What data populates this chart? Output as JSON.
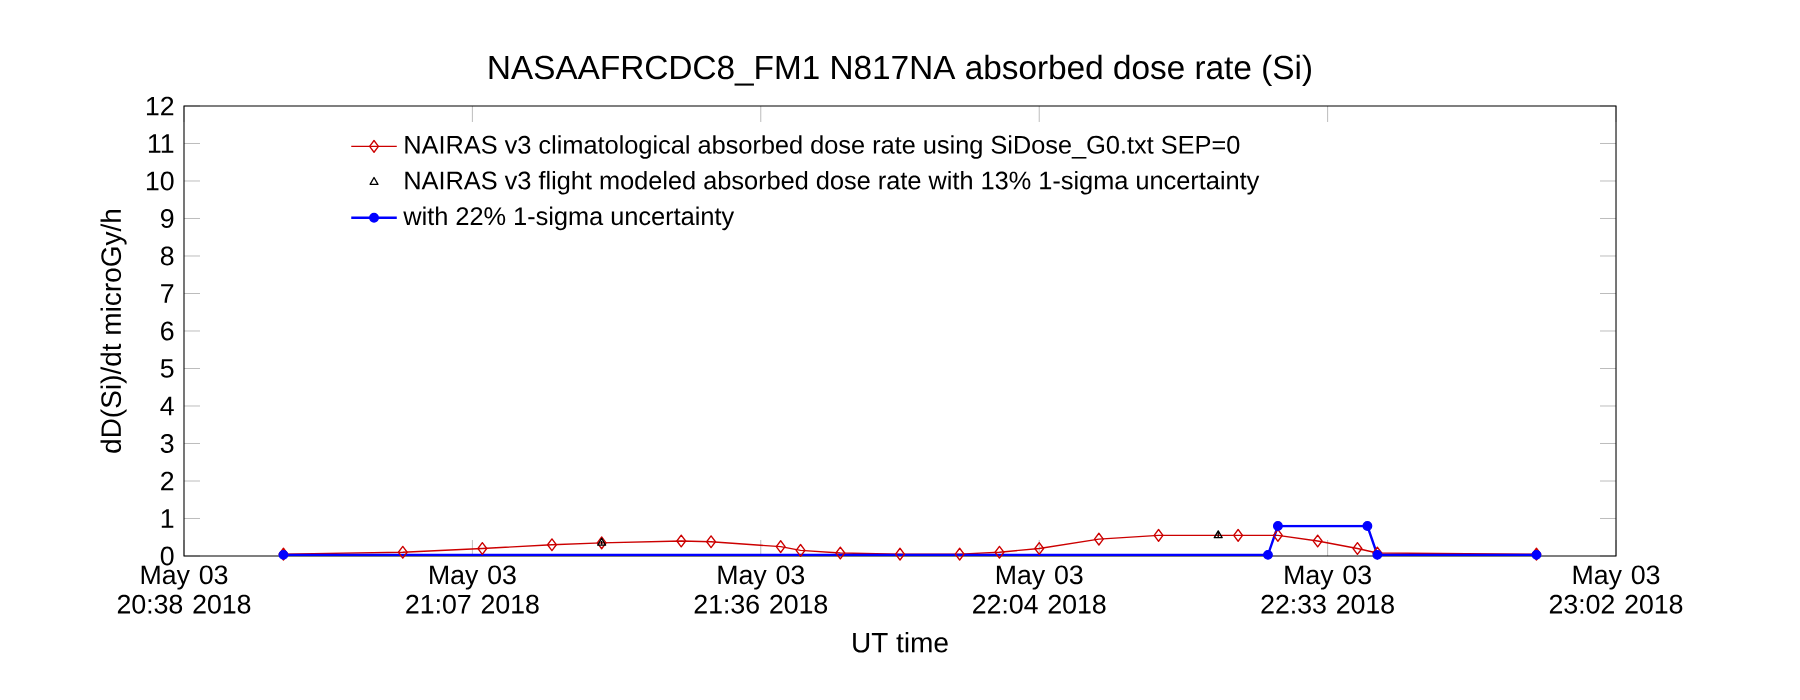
{
  "chart_data": {
    "type": "line",
    "title": "NASAAFRCDC8_FM1   N817NA absorbed dose rate (Si)",
    "xlabel": "UT time",
    "ylabel": "dD(Si)/dt microGy/h",
    "xlim": [
      "2018-05-03T20:38",
      "2018-05-03T23:02"
    ],
    "ylim": [
      0,
      12
    ],
    "xticks": [
      {
        "value": "2018-05-03T20:38",
        "label": "May 03 20:38 2018"
      },
      {
        "value": "2018-05-03T21:07",
        "label": "May 03 21:07 2018"
      },
      {
        "value": "2018-05-03T21:36",
        "label": "May 03 21:36 2018"
      },
      {
        "value": "2018-05-03T22:04",
        "label": "May 03 22:04 2018"
      },
      {
        "value": "2018-05-03T22:33",
        "label": "May 03 22:33 2018"
      },
      {
        "value": "2018-05-03T23:02",
        "label": "May 03 23:02 2018"
      }
    ],
    "yticks": [
      0,
      1,
      2,
      3,
      4,
      5,
      6,
      7,
      8,
      9,
      10,
      11,
      12
    ],
    "legend": "top left",
    "series": [
      {
        "name": "NAIRAS v3 climatological absorbed dose rate using SiDose_G0.txt SEP=0",
        "marker": "diamond",
        "color": "#cc0000",
        "x": [
          "2018-05-03T20:48",
          "2018-05-03T21:00",
          "2018-05-03T21:08",
          "2018-05-03T21:15",
          "2018-05-03T21:20",
          "2018-05-03T21:28",
          "2018-05-03T21:31",
          "2018-05-03T21:38",
          "2018-05-03T21:40",
          "2018-05-03T21:44",
          "2018-05-03T21:50",
          "2018-05-03T21:56",
          "2018-05-03T22:00",
          "2018-05-03T22:04",
          "2018-05-03T22:10",
          "2018-05-03T22:16",
          "2018-05-03T22:24",
          "2018-05-03T22:28",
          "2018-05-03T22:32",
          "2018-05-03T22:36",
          "2018-05-03T22:38",
          "2018-05-03T22:54"
        ],
        "values": [
          0.05,
          0.1,
          0.2,
          0.3,
          0.35,
          0.4,
          0.38,
          0.25,
          0.15,
          0.08,
          0.05,
          0.05,
          0.1,
          0.2,
          0.45,
          0.55,
          0.55,
          0.55,
          0.4,
          0.2,
          0.08,
          0.05
        ]
      },
      {
        "name": "NAIRAS v3 flight modeled absorbed dose rate with 13% 1-sigma uncertainty",
        "type": "scatter",
        "marker": "triangle",
        "color": "#000000",
        "x": [
          "2018-05-03T21:20",
          "2018-05-03T22:22"
        ],
        "values": [
          0.35,
          0.55
        ],
        "errors": [
          0.05,
          0.07
        ]
      },
      {
        "name": "with 22% 1-sigma uncertainty",
        "marker": "circle",
        "color": "#0000ff",
        "x": [
          "2018-05-03T20:48",
          "2018-05-03T22:27",
          "2018-05-03T22:28",
          "2018-05-03T22:37",
          "2018-05-03T22:38",
          "2018-05-03T22:54"
        ],
        "values": [
          0.03,
          0.03,
          0.8,
          0.8,
          0.03,
          0.03
        ]
      }
    ]
  }
}
